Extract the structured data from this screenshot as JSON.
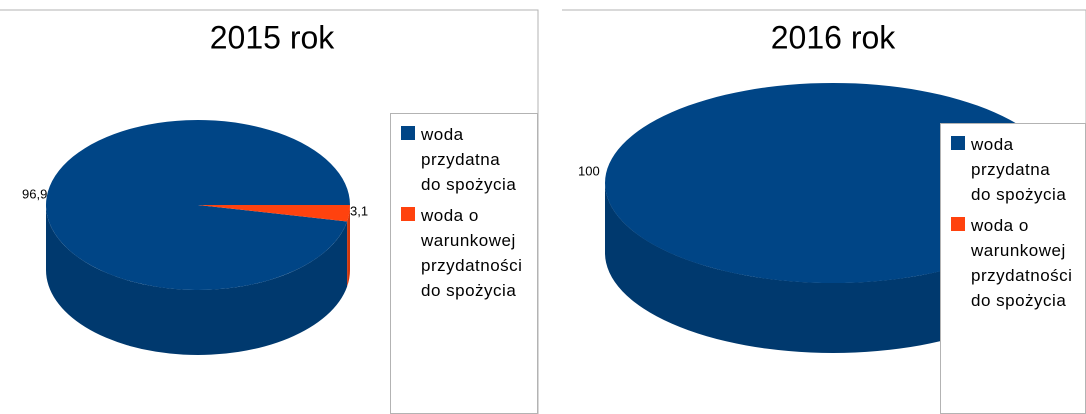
{
  "chart_data": [
    {
      "type": "pie3d",
      "title": "2015 rok",
      "categories": [
        "woda przydatna do spożycia",
        "woda o warunkowej przydatności do spożycia"
      ],
      "values": [
        96.9,
        3.1
      ],
      "value_labels": [
        "96,9",
        "3,1"
      ],
      "colors": [
        "#004586",
        "#ff420e"
      ],
      "legend": "right"
    },
    {
      "type": "pie3d",
      "title": "2016 rok",
      "categories": [
        "woda przydatna do spożycia",
        "woda o warunkowej przydatności do spożycia"
      ],
      "values": [
        100,
        0
      ],
      "value_labels": [
        "100",
        null
      ],
      "colors": [
        "#004586",
        "#ff420e"
      ],
      "legend": "right"
    }
  ]
}
